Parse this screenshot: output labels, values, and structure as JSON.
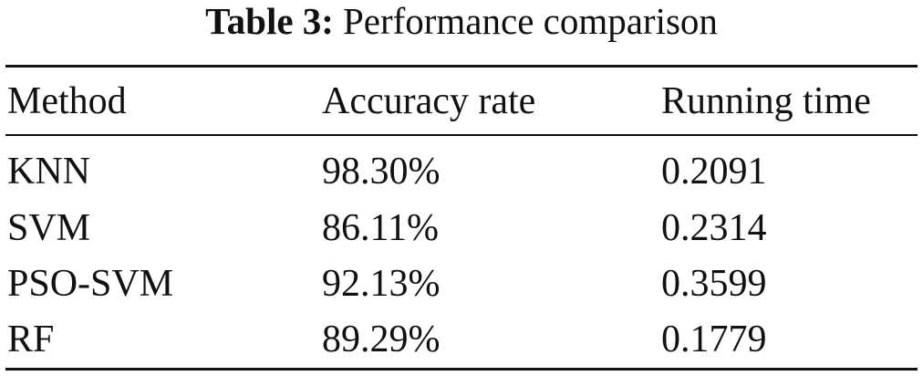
{
  "caption": {
    "label": "Table 3:",
    "text": "Performance comparison"
  },
  "table": {
    "header": [
      "Method",
      "Accuracy rate",
      "Running time"
    ],
    "rows": [
      [
        "KNN",
        "98.30%",
        "0.2091"
      ],
      [
        "SVM",
        "86.11%",
        "0.2314"
      ],
      [
        "PSO-SVM",
        "92.13%",
        "0.3599"
      ],
      [
        "RF",
        "89.29%",
        "0.1779"
      ]
    ]
  }
}
